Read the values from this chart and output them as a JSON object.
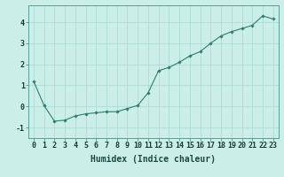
{
  "x": [
    0,
    1,
    2,
    3,
    4,
    5,
    6,
    7,
    8,
    9,
    10,
    11,
    12,
    13,
    14,
    15,
    16,
    17,
    18,
    19,
    20,
    21,
    22,
    23
  ],
  "y": [
    1.2,
    0.05,
    -0.7,
    -0.65,
    -0.45,
    -0.35,
    -0.3,
    -0.25,
    -0.25,
    -0.1,
    0.05,
    0.65,
    1.7,
    1.85,
    2.1,
    2.4,
    2.6,
    3.0,
    3.35,
    3.55,
    3.7,
    3.85,
    4.3,
    4.15
  ],
  "line_color": "#2e7d6e",
  "marker": "D",
  "marker_size": 1.8,
  "bg_color": "#cceee8",
  "grid_color": "#aaddd5",
  "xlabel": "Humidex (Indice chaleur)",
  "xlabel_fontsize": 7,
  "tick_fontsize": 6,
  "ylim": [
    -1.5,
    4.8
  ],
  "xlim": [
    -0.5,
    23.5
  ],
  "yticks": [
    -1,
    0,
    1,
    2,
    3,
    4
  ],
  "xticks": [
    0,
    1,
    2,
    3,
    4,
    5,
    6,
    7,
    8,
    9,
    10,
    11,
    12,
    13,
    14,
    15,
    16,
    17,
    18,
    19,
    20,
    21,
    22,
    23
  ]
}
